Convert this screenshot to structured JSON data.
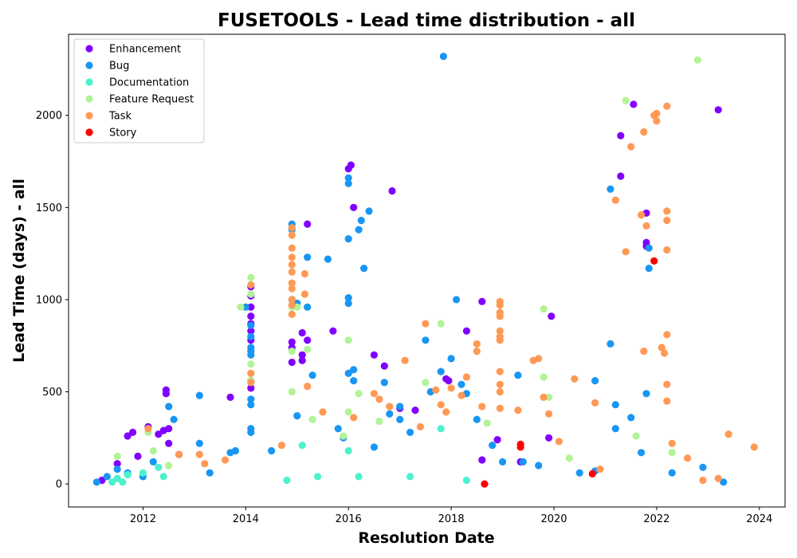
{
  "chart_data": {
    "type": "scatter",
    "title": "FUSETOOLS - Lead time distribution - all",
    "xlabel": "Resolution Date",
    "ylabel": "Lead Time (days) - all",
    "xlim": [
      2010.55,
      2024.5
    ],
    "ylim": [
      -125,
      2440
    ],
    "x_ticks": [
      2012,
      2014,
      2016,
      2018,
      2020,
      2022,
      2024
    ],
    "y_ticks": [
      0,
      500,
      1000,
      1500,
      2000
    ],
    "grid": false,
    "legend_position": "top-left",
    "series": [
      {
        "name": "Enhancement",
        "color": "#8000ff",
        "points": [
          [
            2011.2,
            20
          ],
          [
            2011.5,
            110
          ],
          [
            2011.7,
            260
          ],
          [
            2011.8,
            280
          ],
          [
            2011.9,
            150
          ],
          [
            2012.1,
            310
          ],
          [
            2012.3,
            270
          ],
          [
            2012.4,
            290
          ],
          [
            2012.45,
            510
          ],
          [
            2012.45,
            490
          ],
          [
            2012.5,
            300
          ],
          [
            2012.5,
            220
          ],
          [
            2012.7,
            160
          ],
          [
            2013.7,
            470
          ],
          [
            2014.1,
            1070
          ],
          [
            2014.1,
            1020
          ],
          [
            2014.1,
            960
          ],
          [
            2014.1,
            910
          ],
          [
            2014.1,
            870
          ],
          [
            2014.1,
            830
          ],
          [
            2014.1,
            780
          ],
          [
            2014.1,
            560
          ],
          [
            2014.1,
            520
          ],
          [
            2014.9,
            770
          ],
          [
            2014.9,
            740
          ],
          [
            2014.9,
            660
          ],
          [
            2015.1,
            820
          ],
          [
            2015.1,
            700
          ],
          [
            2015.1,
            670
          ],
          [
            2015.2,
            780
          ],
          [
            2015.2,
            1410
          ],
          [
            2015.7,
            830
          ],
          [
            2016.0,
            1710
          ],
          [
            2016.05,
            1730
          ],
          [
            2016.1,
            1500
          ],
          [
            2016.5,
            700
          ],
          [
            2016.7,
            640
          ],
          [
            2016.85,
            1590
          ],
          [
            2017.0,
            410
          ],
          [
            2017.3,
            400
          ],
          [
            2017.9,
            570
          ],
          [
            2017.95,
            560
          ],
          [
            2018.3,
            830
          ],
          [
            2018.6,
            990
          ],
          [
            2018.6,
            130
          ],
          [
            2018.9,
            240
          ],
          [
            2019.35,
            120
          ],
          [
            2019.9,
            250
          ],
          [
            2019.95,
            910
          ],
          [
            2021.3,
            1890
          ],
          [
            2021.3,
            1670
          ],
          [
            2021.55,
            2060
          ],
          [
            2021.8,
            1470
          ],
          [
            2021.8,
            1310
          ],
          [
            2021.8,
            1290
          ],
          [
            2023.2,
            2030
          ]
        ]
      },
      {
        "name": "Bug",
        "color": "#1996f3",
        "points": [
          [
            2011.1,
            10
          ],
          [
            2011.3,
            40
          ],
          [
            2011.5,
            80
          ],
          [
            2011.7,
            60
          ],
          [
            2012.0,
            40
          ],
          [
            2012.2,
            120
          ],
          [
            2012.5,
            420
          ],
          [
            2012.6,
            350
          ],
          [
            2013.1,
            480
          ],
          [
            2013.1,
            220
          ],
          [
            2013.3,
            60
          ],
          [
            2013.7,
            170
          ],
          [
            2013.8,
            180
          ],
          [
            2014.0,
            960
          ],
          [
            2014.1,
            860
          ],
          [
            2014.1,
            800
          ],
          [
            2014.1,
            740
          ],
          [
            2014.1,
            720
          ],
          [
            2014.1,
            700
          ],
          [
            2014.1,
            460
          ],
          [
            2014.1,
            430
          ],
          [
            2014.1,
            300
          ],
          [
            2014.1,
            280
          ],
          [
            2014.5,
            180
          ],
          [
            2014.9,
            1410
          ],
          [
            2014.9,
            1380
          ],
          [
            2014.9,
            1000
          ],
          [
            2015.0,
            980
          ],
          [
            2015.0,
            370
          ],
          [
            2015.2,
            1230
          ],
          [
            2015.2,
            960
          ],
          [
            2015.3,
            590
          ],
          [
            2015.6,
            1220
          ],
          [
            2015.8,
            300
          ],
          [
            2015.9,
            250
          ],
          [
            2016.0,
            1660
          ],
          [
            2016.0,
            1630
          ],
          [
            2016.0,
            1330
          ],
          [
            2016.0,
            1010
          ],
          [
            2016.0,
            980
          ],
          [
            2016.0,
            600
          ],
          [
            2016.1,
            620
          ],
          [
            2016.1,
            560
          ],
          [
            2016.2,
            1380
          ],
          [
            2016.25,
            1430
          ],
          [
            2016.3,
            1170
          ],
          [
            2016.4,
            1480
          ],
          [
            2016.5,
            200
          ],
          [
            2016.7,
            550
          ],
          [
            2016.8,
            380
          ],
          [
            2017.0,
            420
          ],
          [
            2017.0,
            350
          ],
          [
            2017.2,
            280
          ],
          [
            2017.5,
            780
          ],
          [
            2017.6,
            500
          ],
          [
            2017.8,
            610
          ],
          [
            2017.85,
            2320
          ],
          [
            2018.0,
            680
          ],
          [
            2018.1,
            1000
          ],
          [
            2018.2,
            540
          ],
          [
            2018.3,
            490
          ],
          [
            2018.5,
            350
          ],
          [
            2018.8,
            210
          ],
          [
            2019.0,
            120
          ],
          [
            2019.3,
            590
          ],
          [
            2019.4,
            120
          ],
          [
            2019.7,
            100
          ],
          [
            2020.5,
            60
          ],
          [
            2020.8,
            560
          ],
          [
            2020.8,
            70
          ],
          [
            2021.1,
            1600
          ],
          [
            2021.1,
            760
          ],
          [
            2021.2,
            430
          ],
          [
            2021.2,
            300
          ],
          [
            2021.5,
            360
          ],
          [
            2021.7,
            170
          ],
          [
            2021.8,
            490
          ],
          [
            2021.85,
            1170
          ],
          [
            2021.85,
            1280
          ],
          [
            2022.3,
            60
          ],
          [
            2022.9,
            90
          ],
          [
            2023.3,
            10
          ]
        ]
      },
      {
        "name": "Documentation",
        "color": "#4cf2ce",
        "points": [
          [
            2011.4,
            10
          ],
          [
            2011.5,
            30
          ],
          [
            2011.6,
            10
          ],
          [
            2011.7,
            50
          ],
          [
            2012.0,
            60
          ],
          [
            2012.3,
            90
          ],
          [
            2012.4,
            40
          ],
          [
            2014.8,
            20
          ],
          [
            2015.1,
            210
          ],
          [
            2015.4,
            40
          ],
          [
            2016.0,
            180
          ],
          [
            2016.2,
            40
          ],
          [
            2017.2,
            40
          ],
          [
            2017.8,
            300
          ],
          [
            2018.3,
            20
          ]
        ]
      },
      {
        "name": "Feature Request",
        "color": "#b2f396",
        "points": [
          [
            2011.5,
            150
          ],
          [
            2012.1,
            280
          ],
          [
            2012.2,
            180
          ],
          [
            2012.5,
            100
          ],
          [
            2013.9,
            960
          ],
          [
            2014.1,
            1120
          ],
          [
            2014.1,
            1030
          ],
          [
            2014.1,
            650
          ],
          [
            2014.1,
            600
          ],
          [
            2014.1,
            560
          ],
          [
            2014.9,
            960
          ],
          [
            2014.9,
            500
          ],
          [
            2014.9,
            720
          ],
          [
            2015.0,
            960
          ],
          [
            2015.2,
            730
          ],
          [
            2015.3,
            350
          ],
          [
            2015.9,
            260
          ],
          [
            2016.0,
            780
          ],
          [
            2016.0,
            390
          ],
          [
            2016.2,
            490
          ],
          [
            2016.6,
            340
          ],
          [
            2017.5,
            550
          ],
          [
            2017.8,
            870
          ],
          [
            2018.7,
            330
          ],
          [
            2019.8,
            950
          ],
          [
            2019.8,
            580
          ],
          [
            2019.9,
            470
          ],
          [
            2020.3,
            140
          ],
          [
            2021.4,
            2080
          ],
          [
            2021.6,
            260
          ],
          [
            2022.8,
            2300
          ],
          [
            2022.3,
            170
          ]
        ]
      },
      {
        "name": "Task",
        "color": "#ff9955",
        "points": [
          [
            2012.1,
            300
          ],
          [
            2012.7,
            160
          ],
          [
            2013.1,
            160
          ],
          [
            2013.2,
            110
          ],
          [
            2013.6,
            130
          ],
          [
            2014.1,
            1080
          ],
          [
            2014.1,
            600
          ],
          [
            2014.1,
            550
          ],
          [
            2014.7,
            210
          ],
          [
            2014.9,
            1390
          ],
          [
            2014.9,
            1350
          ],
          [
            2014.9,
            1280
          ],
          [
            2014.9,
            1230
          ],
          [
            2014.9,
            1190
          ],
          [
            2014.9,
            1150
          ],
          [
            2014.9,
            1090
          ],
          [
            2014.9,
            1060
          ],
          [
            2014.9,
            1000
          ],
          [
            2014.9,
            970
          ],
          [
            2014.9,
            920
          ],
          [
            2015.15,
            1140
          ],
          [
            2015.15,
            1030
          ],
          [
            2015.2,
            530
          ],
          [
            2015.5,
            390
          ],
          [
            2016.1,
            360
          ],
          [
            2016.5,
            490
          ],
          [
            2016.6,
            460
          ],
          [
            2016.8,
            420
          ],
          [
            2017.1,
            670
          ],
          [
            2017.4,
            310
          ],
          [
            2017.5,
            870
          ],
          [
            2017.7,
            510
          ],
          [
            2017.8,
            430
          ],
          [
            2017.9,
            390
          ],
          [
            2018.0,
            520
          ],
          [
            2018.2,
            480
          ],
          [
            2018.3,
            580
          ],
          [
            2018.5,
            760
          ],
          [
            2018.5,
            720
          ],
          [
            2018.6,
            420
          ],
          [
            2018.95,
            990
          ],
          [
            2018.95,
            970
          ],
          [
            2018.95,
            930
          ],
          [
            2018.95,
            910
          ],
          [
            2018.95,
            830
          ],
          [
            2018.95,
            800
          ],
          [
            2018.95,
            780
          ],
          [
            2018.95,
            610
          ],
          [
            2018.95,
            540
          ],
          [
            2018.95,
            500
          ],
          [
            2018.95,
            410
          ],
          [
            2019.3,
            400
          ],
          [
            2019.6,
            670
          ],
          [
            2019.7,
            680
          ],
          [
            2019.8,
            470
          ],
          [
            2019.9,
            380
          ],
          [
            2020.1,
            230
          ],
          [
            2020.4,
            570
          ],
          [
            2020.8,
            440
          ],
          [
            2021.2,
            1540
          ],
          [
            2021.4,
            1260
          ],
          [
            2021.5,
            1830
          ],
          [
            2021.7,
            1460
          ],
          [
            2021.8,
            1400
          ],
          [
            2021.75,
            1910
          ],
          [
            2021.75,
            720
          ],
          [
            2021.95,
            2000
          ],
          [
            2022.0,
            2010
          ],
          [
            2022.0,
            1970
          ],
          [
            2022.1,
            740
          ],
          [
            2022.15,
            710
          ],
          [
            2022.2,
            2050
          ],
          [
            2022.2,
            1480
          ],
          [
            2022.2,
            1430
          ],
          [
            2022.2,
            1270
          ],
          [
            2022.2,
            810
          ],
          [
            2022.2,
            540
          ],
          [
            2022.2,
            450
          ],
          [
            2022.3,
            220
          ],
          [
            2022.6,
            140
          ],
          [
            2023.4,
            270
          ],
          [
            2023.9,
            200
          ],
          [
            2023.2,
            30
          ],
          [
            2022.9,
            20
          ],
          [
            2020.9,
            80
          ]
        ]
      },
      {
        "name": "Story",
        "color": "#ff0000",
        "points": [
          [
            2018.65,
            0
          ],
          [
            2019.35,
            200
          ],
          [
            2019.35,
            215
          ],
          [
            2020.75,
            55
          ],
          [
            2021.95,
            1210
          ]
        ]
      }
    ]
  }
}
